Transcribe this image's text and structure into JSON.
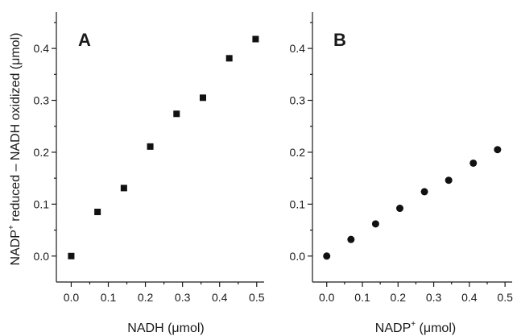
{
  "figure": {
    "ylabel_shared": "NADP",
    "ylabel_shared_sup": "+",
    "ylabel_shared_rest": " reduced – NADH oxidized (μmol)"
  },
  "chart_data": [
    {
      "type": "scatter",
      "panel": "A",
      "marker": "square",
      "title": "",
      "xlabel": "NADH (μmol)",
      "xlabel_parts": [
        "NADH (",
        "μ",
        "mol)"
      ],
      "ylabel": "NADP+ reduced – NADH oxidized (μmol)",
      "xlim": [
        -0.04,
        0.52
      ],
      "ylim": [
        -0.05,
        0.47
      ],
      "xticks": [
        0.0,
        0.1,
        0.2,
        0.3,
        0.4,
        0.5
      ],
      "xtick_labels": [
        "0.0",
        "0.1",
        "0.2",
        "0.3",
        "0.4",
        "0.5"
      ],
      "yticks": [
        0.0,
        0.1,
        0.2,
        0.3,
        0.4
      ],
      "ytick_labels": [
        "0.0",
        "0.1",
        "0.2",
        "0.3",
        "0.4"
      ],
      "series": [
        {
          "x": [
            0.0,
            0.071,
            0.142,
            0.213,
            0.284,
            0.355,
            0.426,
            0.497
          ],
          "y": [
            0.0,
            0.085,
            0.131,
            0.211,
            0.274,
            0.305,
            0.381,
            0.418
          ]
        }
      ],
      "grid": false
    },
    {
      "type": "scatter",
      "panel": "B",
      "marker": "circle",
      "title": "",
      "xlabel": "NADP+ (μmol)",
      "xlabel_parts": [
        "NADP",
        "+",
        " (μmol)"
      ],
      "ylabel": "",
      "xlim": [
        -0.04,
        0.52
      ],
      "ylim": [
        -0.05,
        0.47
      ],
      "xticks": [
        0.0,
        0.1,
        0.2,
        0.3,
        0.4,
        0.5
      ],
      "xtick_labels": [
        "0.0",
        "0.1",
        "0.2",
        "0.3",
        "0.4",
        "0.5"
      ],
      "yticks": [
        0.0,
        0.1,
        0.2,
        0.3,
        0.4
      ],
      "ytick_labels": [
        "0.0",
        "0.1",
        "0.2",
        "0.3",
        "0.4"
      ],
      "series": [
        {
          "x": [
            0.0,
            0.068,
            0.137,
            0.205,
            0.274,
            0.342,
            0.411,
            0.479
          ],
          "y": [
            0.0,
            0.032,
            0.062,
            0.092,
            0.124,
            0.146,
            0.179,
            0.205
          ]
        }
      ],
      "grid": false
    }
  ]
}
